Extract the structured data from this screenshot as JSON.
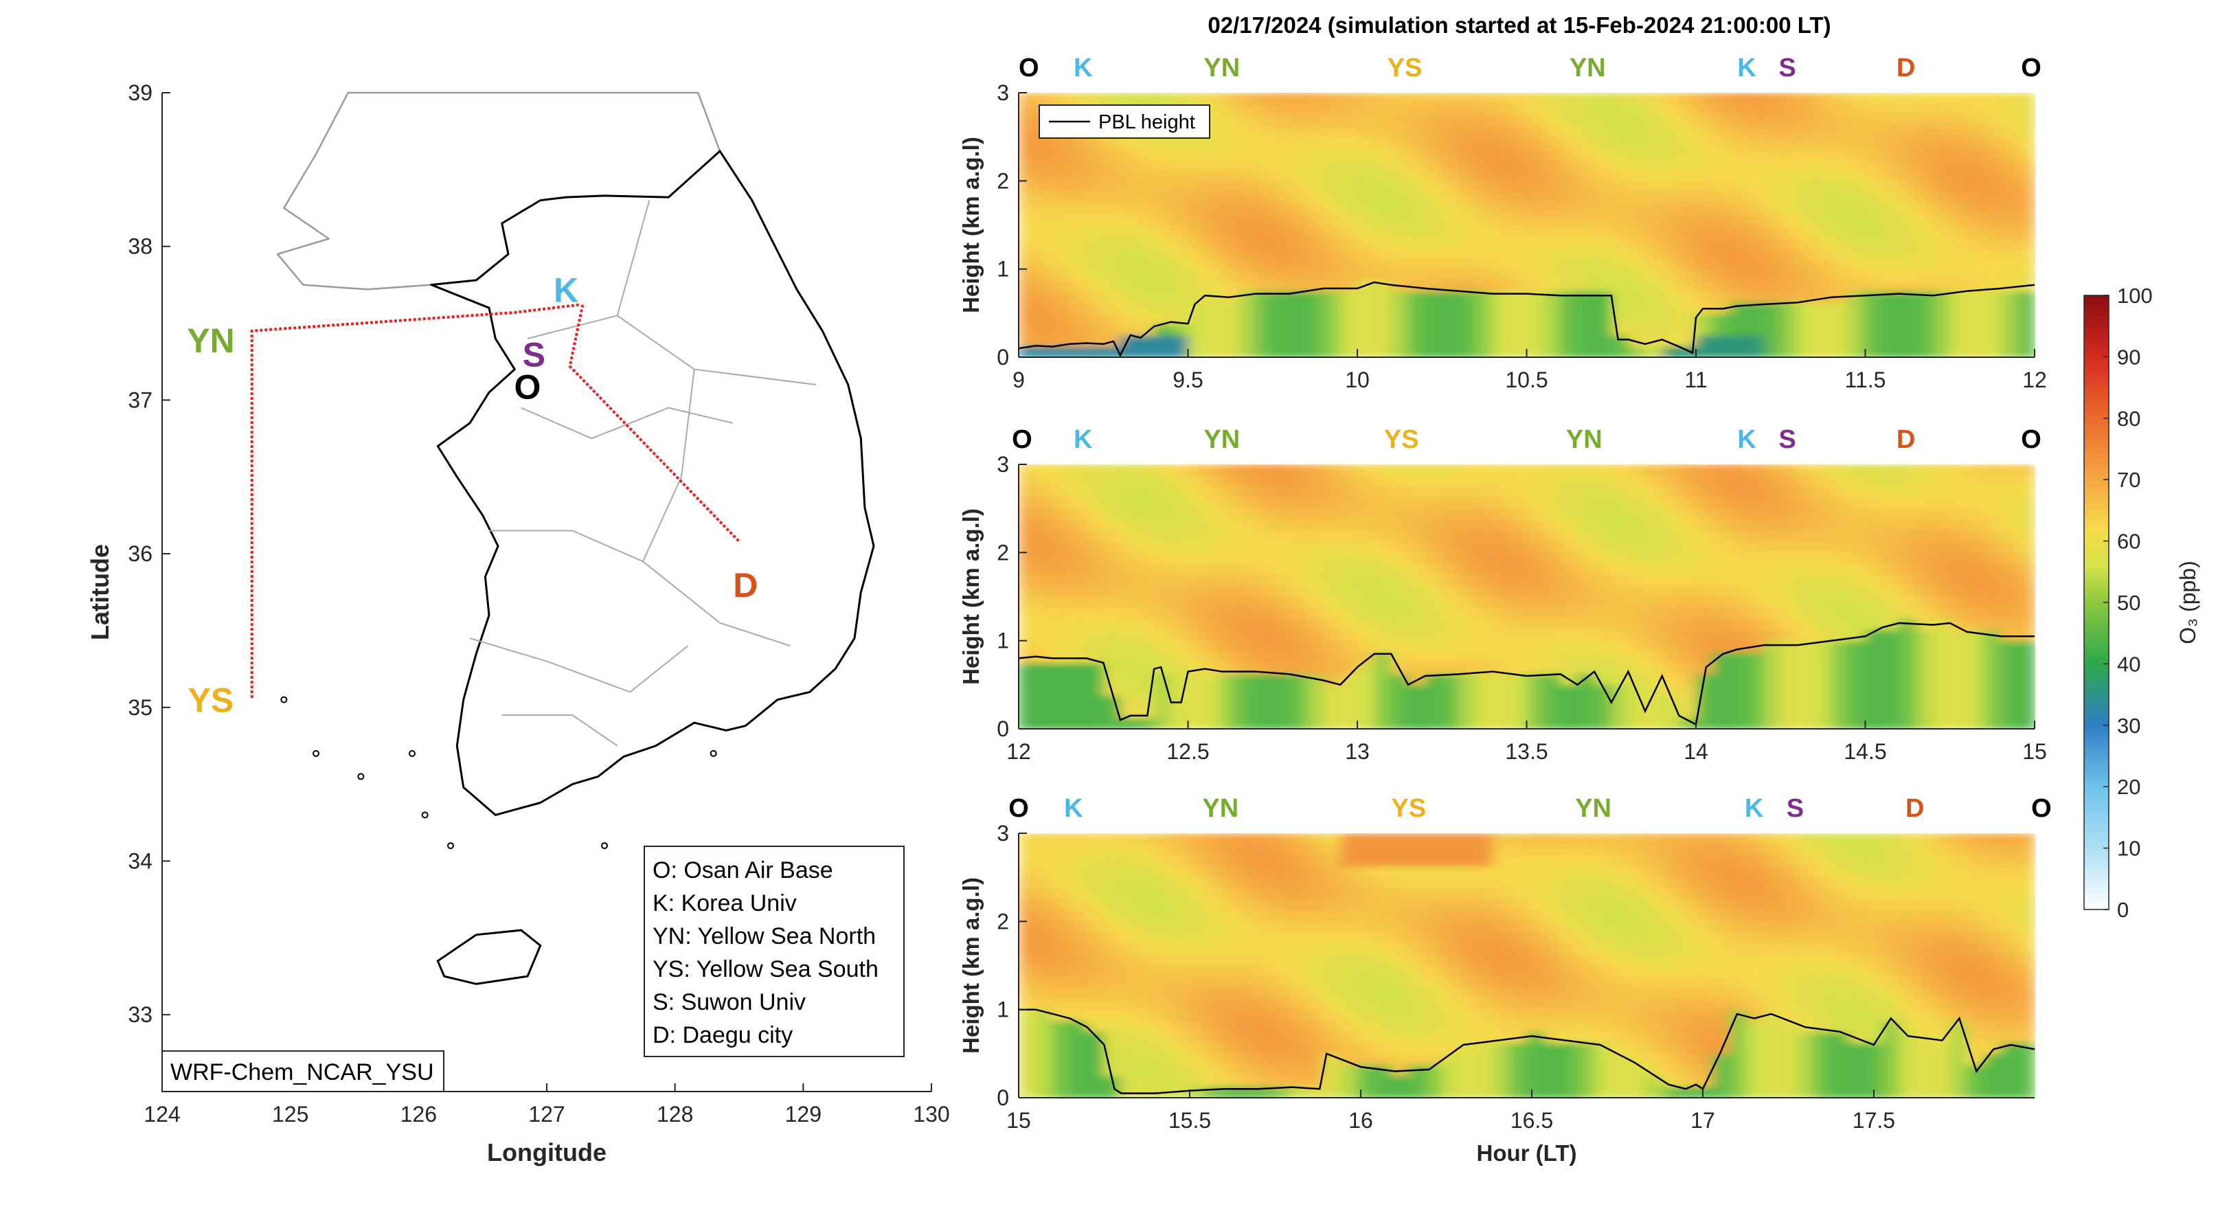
{
  "figure": {
    "main_title": "02/17/2024 (simulation started at 15-Feb-2024 21:00:00 LT)",
    "model_label": "WRF-Chem_NCAR_YSU"
  },
  "map": {
    "xlabel": "Longitude",
    "ylabel": "Latitude",
    "xlim": [
      124,
      130
    ],
    "ylim": [
      32.5,
      39
    ],
    "xticks": [
      "124",
      "125",
      "126",
      "127",
      "128",
      "129",
      "130"
    ],
    "yticks": [
      "33",
      "34",
      "35",
      "36",
      "37",
      "38",
      "39"
    ],
    "sites": [
      {
        "code": "O",
        "lon": 126.85,
        "lat": 37.09,
        "color": "#000000"
      },
      {
        "code": "K",
        "lon": 127.15,
        "lat": 37.72,
        "color": "#4db8e8"
      },
      {
        "code": "S",
        "lon": 126.9,
        "lat": 37.3,
        "color": "#7e2f8e"
      },
      {
        "code": "D",
        "lon": 128.55,
        "lat": 35.8,
        "color": "#d95319"
      },
      {
        "code": "YN",
        "lon": 124.38,
        "lat": 37.39,
        "color": "#77ac30"
      },
      {
        "code": "YS",
        "lon": 124.38,
        "lat": 35.05,
        "color": "#edb120"
      }
    ],
    "flight_track": [
      [
        127.25,
        37.62
      ],
      [
        126.75,
        37.57
      ],
      [
        124.7,
        37.45
      ],
      [
        124.7,
        35.05
      ]
    ],
    "track_to_daegu": [
      [
        127.28,
        37.62
      ],
      [
        127.18,
        37.22
      ],
      [
        128.5,
        36.08
      ]
    ],
    "legend_lines": [
      "O: Osan Air Base",
      "K: Korea Univ",
      "YN: Yellow Sea North",
      "YS: Yellow Sea South",
      "S: Suwon Univ",
      "D: Daegu city"
    ],
    "track_color": "#e8211e",
    "coast_color": "#000000",
    "border_color": "#aaaaaa"
  },
  "chart_data": [
    {
      "type": "heatmap",
      "title": "",
      "xlabel": "",
      "ylabel": "Height (km a.g.l)",
      "xlim": [
        9,
        12
      ],
      "ylim": [
        0,
        3
      ],
      "xticks": [
        "9",
        "9.5",
        "10",
        "10.5",
        "11",
        "11.5",
        "12"
      ],
      "yticks": [
        "0",
        "1",
        "2",
        "3"
      ],
      "site_labels": [
        {
          "text": "O",
          "x": 9.03
        },
        {
          "text": "K",
          "x": 9.19
        },
        {
          "text": "YN",
          "x": 9.6
        },
        {
          "text": "YS",
          "x": 10.14
        },
        {
          "text": "YN",
          "x": 10.68
        },
        {
          "text": "K",
          "x": 11.15
        },
        {
          "text": "S",
          "x": 11.27
        },
        {
          "text": "D",
          "x": 11.62
        },
        {
          "text": "O",
          "x": 11.99
        }
      ],
      "legend": "PBL height",
      "pbl": {
        "x": [
          9.0,
          9.05,
          9.1,
          9.15,
          9.2,
          9.25,
          9.28,
          9.3,
          9.33,
          9.36,
          9.4,
          9.45,
          9.5,
          9.52,
          9.55,
          9.62,
          9.7,
          9.8,
          9.9,
          10.0,
          10.05,
          10.1,
          10.15,
          10.2,
          10.3,
          10.4,
          10.5,
          10.6,
          10.7,
          10.75,
          10.77,
          10.8,
          10.85,
          10.9,
          10.95,
          10.99,
          11.0,
          11.02,
          11.08,
          11.12,
          11.2,
          11.3,
          11.4,
          11.5,
          11.6,
          11.7,
          11.8,
          11.9,
          11.95,
          12.0
        ],
        "y": [
          0.1,
          0.13,
          0.12,
          0.15,
          0.16,
          0.15,
          0.18,
          0.02,
          0.25,
          0.22,
          0.35,
          0.4,
          0.38,
          0.6,
          0.7,
          0.68,
          0.72,
          0.72,
          0.78,
          0.78,
          0.85,
          0.82,
          0.8,
          0.78,
          0.75,
          0.72,
          0.72,
          0.7,
          0.7,
          0.7,
          0.2,
          0.2,
          0.15,
          0.2,
          0.12,
          0.05,
          0.45,
          0.55,
          0.55,
          0.58,
          0.6,
          0.62,
          0.68,
          0.7,
          0.72,
          0.7,
          0.75,
          0.78,
          0.8,
          0.82
        ]
      }
    },
    {
      "type": "heatmap",
      "title": "",
      "xlabel": "",
      "ylabel": "Height (km a.g.l)",
      "xlim": [
        12,
        15
      ],
      "ylim": [
        0,
        3
      ],
      "xticks": [
        "12",
        "12.5",
        "13",
        "13.5",
        "14",
        "14.5",
        "15"
      ],
      "yticks": [
        "0",
        "1",
        "2",
        "3"
      ],
      "site_labels": [
        {
          "text": "O",
          "x": 12.01
        },
        {
          "text": "K",
          "x": 12.19
        },
        {
          "text": "YN",
          "x": 12.6
        },
        {
          "text": "YS",
          "x": 13.13
        },
        {
          "text": "YN",
          "x": 13.67
        },
        {
          "text": "K",
          "x": 14.15
        },
        {
          "text": "S",
          "x": 14.27
        },
        {
          "text": "D",
          "x": 14.62
        },
        {
          "text": "O",
          "x": 14.99
        }
      ],
      "pbl": {
        "x": [
          12.0,
          12.05,
          12.1,
          12.15,
          12.2,
          12.25,
          12.3,
          12.33,
          12.38,
          12.4,
          12.42,
          12.45,
          12.48,
          12.5,
          12.55,
          12.6,
          12.7,
          12.8,
          12.9,
          12.95,
          13.0,
          13.05,
          13.1,
          13.15,
          13.2,
          13.3,
          13.4,
          13.5,
          13.6,
          13.65,
          13.7,
          13.75,
          13.8,
          13.85,
          13.9,
          13.95,
          14.0,
          14.03,
          14.08,
          14.12,
          14.2,
          14.3,
          14.4,
          14.5,
          14.55,
          14.6,
          14.7,
          14.75,
          14.8,
          14.9,
          15.0
        ],
        "y": [
          0.8,
          0.82,
          0.8,
          0.8,
          0.8,
          0.75,
          0.1,
          0.15,
          0.15,
          0.68,
          0.7,
          0.3,
          0.3,
          0.65,
          0.68,
          0.65,
          0.65,
          0.62,
          0.55,
          0.5,
          0.7,
          0.85,
          0.85,
          0.5,
          0.6,
          0.62,
          0.65,
          0.6,
          0.62,
          0.5,
          0.65,
          0.3,
          0.65,
          0.2,
          0.6,
          0.15,
          0.05,
          0.7,
          0.85,
          0.9,
          0.95,
          0.95,
          1.0,
          1.05,
          1.15,
          1.2,
          1.18,
          1.2,
          1.1,
          1.05,
          1.05
        ]
      }
    },
    {
      "type": "heatmap",
      "title": "",
      "xlabel": "Hour (LT)",
      "ylabel": "Height (km a.g.l)",
      "xlim": [
        15,
        17.97
      ],
      "ylim": [
        0,
        3
      ],
      "xticks": [
        "15",
        "15.5",
        "16",
        "16.5",
        "17",
        "17.5"
      ],
      "xtick_values": [
        15,
        15.5,
        16,
        16.5,
        17,
        17.5
      ],
      "yticks": [
        "0",
        "1",
        "2",
        "3"
      ],
      "site_labels": [
        {
          "text": "O",
          "x": 15.0
        },
        {
          "text": "K",
          "x": 15.16
        },
        {
          "text": "YN",
          "x": 15.59
        },
        {
          "text": "YS",
          "x": 16.14
        },
        {
          "text": "YN",
          "x": 16.68
        },
        {
          "text": "K",
          "x": 17.15
        },
        {
          "text": "S",
          "x": 17.27
        },
        {
          "text": "D",
          "x": 17.62
        },
        {
          "text": "O",
          "x": 17.99
        }
      ],
      "pbl": {
        "x": [
          15.0,
          15.05,
          15.1,
          15.15,
          15.2,
          15.25,
          15.28,
          15.3,
          15.4,
          15.5,
          15.6,
          15.7,
          15.8,
          15.88,
          15.9,
          16.0,
          16.1,
          16.2,
          16.3,
          16.4,
          16.5,
          16.6,
          16.7,
          16.8,
          16.9,
          16.95,
          16.98,
          17.0,
          17.05,
          17.1,
          17.15,
          17.2,
          17.3,
          17.4,
          17.5,
          17.55,
          17.6,
          17.7,
          17.75,
          17.8,
          17.85,
          17.9,
          17.97
        ],
        "y": [
          1.0,
          1.0,
          0.95,
          0.9,
          0.8,
          0.6,
          0.1,
          0.05,
          0.05,
          0.08,
          0.1,
          0.1,
          0.12,
          0.1,
          0.5,
          0.35,
          0.3,
          0.32,
          0.6,
          0.65,
          0.7,
          0.65,
          0.6,
          0.4,
          0.15,
          0.1,
          0.15,
          0.1,
          0.5,
          0.95,
          0.9,
          0.95,
          0.8,
          0.75,
          0.6,
          0.9,
          0.7,
          0.65,
          0.9,
          0.3,
          0.55,
          0.6,
          0.55
        ]
      }
    }
  ],
  "colorbar": {
    "label": "O₃ (ppb)",
    "range": [
      0,
      100
    ],
    "ticks": [
      "0",
      "10",
      "20",
      "30",
      "40",
      "50",
      "60",
      "70",
      "80",
      "90",
      "100"
    ],
    "colormap": [
      "#ffffff",
      "#a6dcf0",
      "#4aa3d6",
      "#2c7cbf",
      "#2ea84a",
      "#6bc046",
      "#d4e24a",
      "#f7d94c",
      "#f5a742",
      "#ee6a2e",
      "#d42a20",
      "#8b0c12"
    ]
  }
}
